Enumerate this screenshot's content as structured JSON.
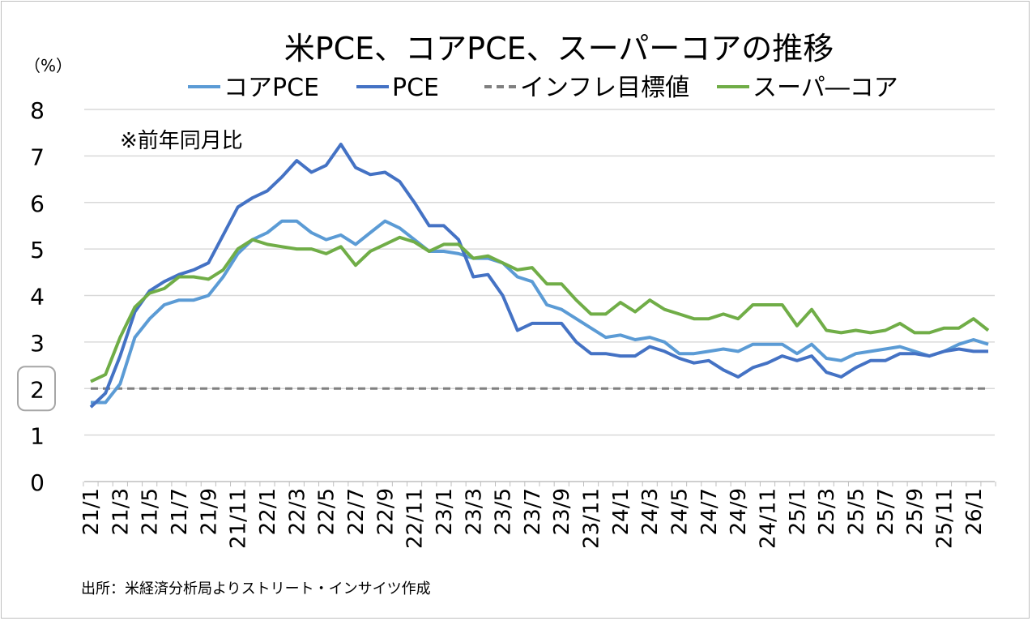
{
  "chart_data": {
    "type": "line",
    "title": "米PCE、コアPCE、スーパーコアの推移",
    "ylabel": "（%）",
    "note": "※前年同月比",
    "source": "出所：米経済分析局よりストリート・インサイツ作成",
    "ylim": [
      0,
      8
    ],
    "yticks": [
      "0",
      "1",
      "2",
      "3",
      "4",
      "5",
      "6",
      "7",
      "8"
    ],
    "highlighted_ytick": "2",
    "grid": true,
    "legend_position": "top",
    "xtick_labels": [
      "21/1",
      "21/3",
      "21/5",
      "21/7",
      "21/9",
      "21/11",
      "22/1",
      "22/3",
      "22/5",
      "22/7",
      "22/9",
      "22/11",
      "23/1",
      "23/3",
      "23/5",
      "23/7",
      "23/9",
      "23/11",
      "24/1",
      "24/3",
      "24/5",
      "24/7",
      "24/9",
      "24/11",
      "25/1",
      "25/3",
      "25/5",
      "25/7",
      "25/9",
      "25/11",
      "26/1"
    ],
    "x_count": 62,
    "series": [
      {
        "name": "コアPCE",
        "color": "#5b9bd5",
        "dash": false,
        "values": [
          1.7,
          1.7,
          2.1,
          3.1,
          3.5,
          3.8,
          3.9,
          3.9,
          4.0,
          4.4,
          4.9,
          5.2,
          5.35,
          5.6,
          5.6,
          5.35,
          5.2,
          5.3,
          5.1,
          5.35,
          5.6,
          5.45,
          5.2,
          4.95,
          4.95,
          4.9,
          4.8,
          4.8,
          4.7,
          4.4,
          4.3,
          3.8,
          3.7,
          3.5,
          3.3,
          3.1,
          3.15,
          3.05,
          3.1,
          3.0,
          2.75,
          2.75,
          2.8,
          2.85,
          2.8,
          2.95,
          2.95,
          2.95,
          2.75,
          2.95,
          2.65,
          2.6,
          2.75,
          2.8,
          2.85,
          2.9,
          2.8,
          2.7,
          2.8,
          2.95,
          3.05,
          2.95
        ]
      },
      {
        "name": "PCE",
        "color": "#4472c4",
        "dash": false,
        "values": [
          1.6,
          1.9,
          2.7,
          3.65,
          4.1,
          4.3,
          4.45,
          4.55,
          4.7,
          5.3,
          5.9,
          6.1,
          6.25,
          6.55,
          6.9,
          6.65,
          6.8,
          7.25,
          6.75,
          6.6,
          6.65,
          6.45,
          6.0,
          5.5,
          5.5,
          5.2,
          4.4,
          4.45,
          4.0,
          3.25,
          3.4,
          3.4,
          3.4,
          3.0,
          2.75,
          2.75,
          2.7,
          2.7,
          2.9,
          2.8,
          2.65,
          2.55,
          2.6,
          2.4,
          2.25,
          2.45,
          2.55,
          2.7,
          2.6,
          2.7,
          2.35,
          2.25,
          2.45,
          2.6,
          2.6,
          2.75,
          2.75,
          2.7,
          2.8,
          2.85,
          2.8,
          2.8
        ]
      },
      {
        "name": "インフレ目標値",
        "color": "#808080",
        "dash": true,
        "values": [
          2,
          2,
          2,
          2,
          2,
          2,
          2,
          2,
          2,
          2,
          2,
          2,
          2,
          2,
          2,
          2,
          2,
          2,
          2,
          2,
          2,
          2,
          2,
          2,
          2,
          2,
          2,
          2,
          2,
          2,
          2,
          2,
          2,
          2,
          2,
          2,
          2,
          2,
          2,
          2,
          2,
          2,
          2,
          2,
          2,
          2,
          2,
          2,
          2,
          2,
          2,
          2,
          2,
          2,
          2,
          2,
          2,
          2,
          2,
          2,
          2,
          2
        ]
      },
      {
        "name": "スーパ―コア",
        "color": "#70ad47",
        "dash": false,
        "values": [
          2.15,
          2.3,
          3.1,
          3.75,
          4.05,
          4.15,
          4.4,
          4.4,
          4.35,
          4.55,
          5.0,
          5.2,
          5.1,
          5.05,
          5.0,
          5.0,
          4.9,
          5.05,
          4.65,
          4.95,
          5.1,
          5.25,
          5.15,
          4.95,
          5.1,
          5.1,
          4.8,
          4.85,
          4.7,
          4.55,
          4.6,
          4.25,
          4.25,
          3.9,
          3.6,
          3.6,
          3.85,
          3.65,
          3.9,
          3.7,
          3.6,
          3.5,
          3.5,
          3.6,
          3.5,
          3.8,
          3.8,
          3.8,
          3.35,
          3.7,
          3.25,
          3.2,
          3.25,
          3.2,
          3.25,
          3.4,
          3.2,
          3.2,
          3.3,
          3.3,
          3.5,
          3.25
        ]
      }
    ]
  }
}
